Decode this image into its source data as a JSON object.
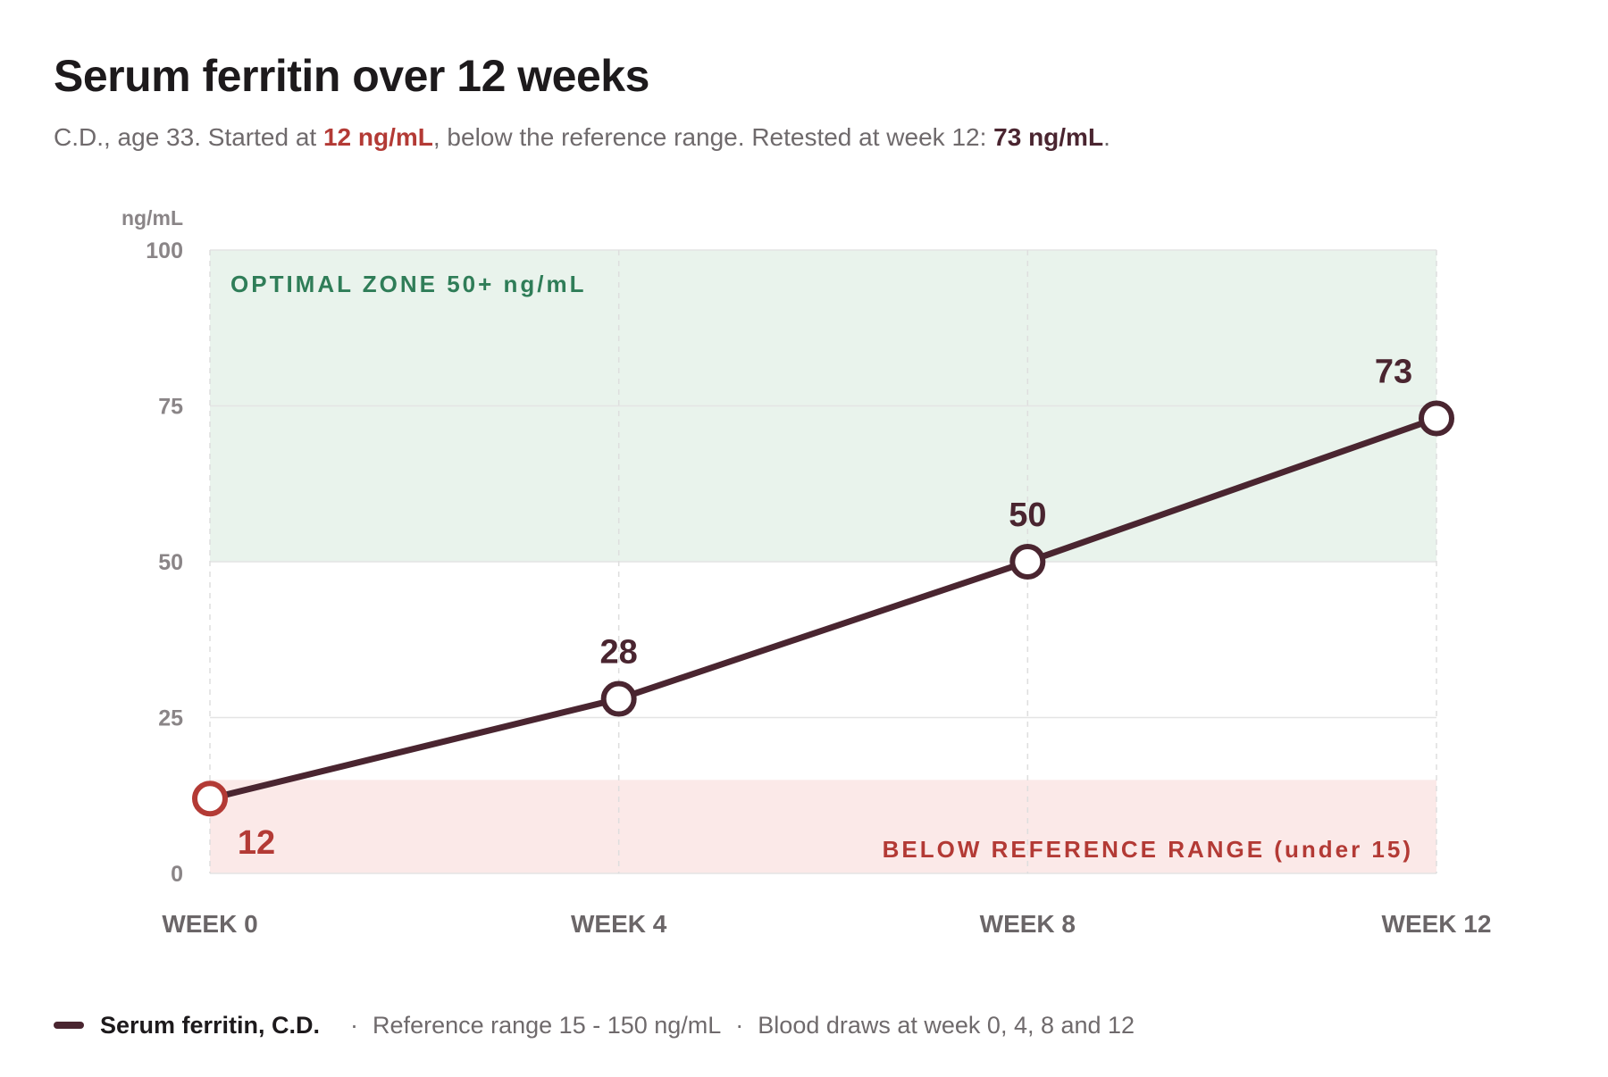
{
  "title": "Serum ferritin over 12 weeks",
  "subtitle": {
    "prefix": "C.D., age 33. Started at ",
    "start_value": "12 ng/mL",
    "middle": ", below the reference range. Retested at week 12: ",
    "end_value": "73 ng/mL",
    "suffix": "."
  },
  "legend": {
    "series_label": "Serum ferritin, C.D.",
    "separator": "·",
    "note_1": "Reference range 15 - 150 ng/mL",
    "note_2": "Blood draws at week 0, 4, 8 and 12"
  },
  "colors": {
    "line": "#4a2530",
    "low_point": "#b33a35",
    "optimal_band": "#e9f3ec",
    "optimal_text": "#2f7d58",
    "low_band": "#fbe9e8",
    "low_text": "#b33a35",
    "grid": "#e4e4e4",
    "axis_text": "#8a8587",
    "category_text": "#6b6668"
  },
  "chart_data": {
    "type": "line",
    "categories": [
      "WEEK 0",
      "WEEK 4",
      "WEEK 8",
      "WEEK 12"
    ],
    "series": [
      {
        "name": "Serum ferritin, C.D.",
        "values": [
          12,
          28,
          50,
          73
        ]
      }
    ],
    "data_labels": [
      "12",
      "28",
      "50",
      "73"
    ],
    "ylabel": "ng/mL",
    "ylim": [
      0,
      100
    ],
    "yticks": [
      0,
      25,
      50,
      75,
      100
    ],
    "ytick_labels": [
      "0",
      "25",
      "50",
      "75",
      "100"
    ],
    "grid": true,
    "bands": [
      {
        "name": "optimal",
        "from": 50,
        "to": 100,
        "label": "OPTIMAL ZONE 50+ ng/mL"
      },
      {
        "name": "low",
        "from": 0,
        "to": 15,
        "label": "BELOW REFERENCE RANGE (under 15)"
      }
    ]
  }
}
